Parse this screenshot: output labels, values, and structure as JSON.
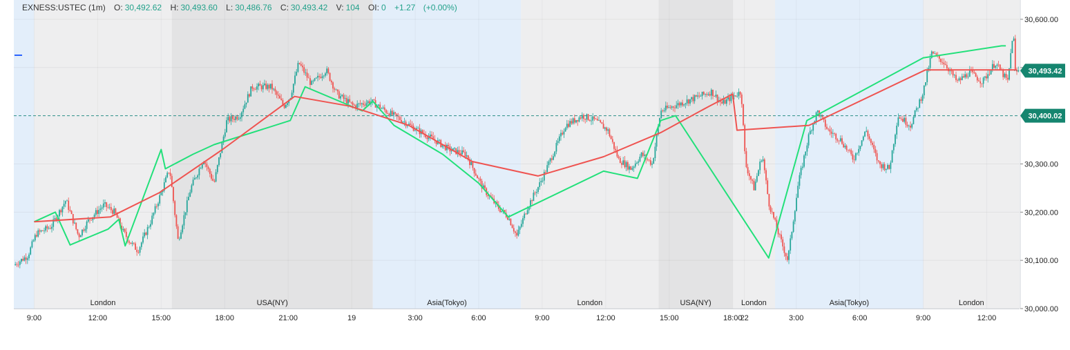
{
  "header": {
    "symbol": "EXNESS:USTEC (1m)",
    "o_label": "O:",
    "o_value": "30,492.62",
    "h_label": "H:",
    "h_value": "30,493.60",
    "l_label": "L:",
    "l_value": "30,486.76",
    "c_label": "C:",
    "c_value": "30,493.42",
    "v_label": "V:",
    "v_value": "104",
    "oi_label": "OI:",
    "oi_value": "0",
    "change": "+1.27",
    "change_pct": "(+0.00%)"
  },
  "colors": {
    "up": "#26a69a",
    "down": "#ef5350",
    "zigzag": "#22e07a",
    "trend": "#ef5350",
    "level": "#2a8f86",
    "price_tag": "#15856f",
    "asia_bg": "#e3eefa",
    "london_bg": "#eeeeef",
    "ny_bg": "#e3e3e4"
  },
  "chart_data": {
    "type": "line",
    "y_axis": {
      "min": 30000,
      "max": 30640,
      "ticks": [
        {
          "value": 30600,
          "label": "30,600.00"
        },
        {
          "value": 30500,
          "label": "30,500.00"
        },
        {
          "value": 30300,
          "label": "30,300.00"
        },
        {
          "value": 30200,
          "label": "30,200.00"
        },
        {
          "value": 30100,
          "label": "30,100.00"
        },
        {
          "value": 30000,
          "label": "30,000.00"
        }
      ]
    },
    "x_axis": {
      "unit": "hours from 18 day 00:00",
      "min": 8.04,
      "max": 55.55,
      "ticks": [
        {
          "x": 9,
          "label": "9:00"
        },
        {
          "x": 12,
          "label": "12:00"
        },
        {
          "x": 15,
          "label": "15:00"
        },
        {
          "x": 18,
          "label": "18:00"
        },
        {
          "x": 21,
          "label": "21:00"
        },
        {
          "x": 24,
          "label": "19"
        },
        {
          "x": 27,
          "label": "3:00"
        },
        {
          "x": 30,
          "label": "6:00"
        },
        {
          "x": 33,
          "label": "9:00"
        },
        {
          "x": 36,
          "label": "12:00"
        },
        {
          "x": 39,
          "label": "15:00"
        },
        {
          "x": 42,
          "label": "18:00"
        },
        {
          "x": 42.55,
          "label": "22"
        },
        {
          "x": 45,
          "label": "3:00"
        },
        {
          "x": 48,
          "label": "6:00"
        },
        {
          "x": 51,
          "label": "9:00"
        },
        {
          "x": 54,
          "label": "12:00"
        }
      ]
    },
    "sessions": [
      {
        "name": "",
        "kind": "asia",
        "start": 8.04,
        "end": 9.0
      },
      {
        "name": "London",
        "kind": "london",
        "start": 9.0,
        "end": 15.5
      },
      {
        "name": "USA(NY)",
        "kind": "ny",
        "start": 15.5,
        "end": 25.0
      },
      {
        "name": "Asia(Tokyo)",
        "kind": "asia",
        "start": 25.0,
        "end": 32.0
      },
      {
        "name": "London",
        "kind": "london",
        "start": 32.0,
        "end": 38.5
      },
      {
        "name": "USA(NY)",
        "kind": "ny",
        "start": 38.5,
        "end": 42.0
      },
      {
        "name": "London",
        "kind": "london",
        "start": 42.0,
        "end": 44.0
      },
      {
        "name": "Asia(Tokyo)",
        "kind": "asia",
        "start": 44.0,
        "end": 51.0
      },
      {
        "name": "London",
        "kind": "london",
        "start": 51.0,
        "end": 55.55
      }
    ],
    "price_path": [
      [
        8.04,
        30090
      ],
      [
        8.7,
        30110
      ],
      [
        9.1,
        30155
      ],
      [
        9.8,
        30170
      ],
      [
        10.5,
        30225
      ],
      [
        11.1,
        30150
      ],
      [
        11.6,
        30185
      ],
      [
        12.3,
        30215
      ],
      [
        12.8,
        30200
      ],
      [
        13.2,
        30160
      ],
      [
        13.5,
        30140
      ],
      [
        13.9,
        30120
      ],
      [
        14.5,
        30180
      ],
      [
        15.0,
        30240
      ],
      [
        15.4,
        30290
      ],
      [
        15.8,
        30140
      ],
      [
        16.4,
        30250
      ],
      [
        17.0,
        30310
      ],
      [
        17.5,
        30260
      ],
      [
        18.1,
        30390
      ],
      [
        18.7,
        30400
      ],
      [
        19.3,
        30460
      ],
      [
        20.2,
        30460
      ],
      [
        20.8,
        30420
      ],
      [
        21.1,
        30440
      ],
      [
        21.5,
        30510
      ],
      [
        22.1,
        30465
      ],
      [
        22.8,
        30495
      ],
      [
        23.3,
        30445
      ],
      [
        24.1,
        30420
      ],
      [
        24.9,
        30430
      ],
      [
        25.6,
        30410
      ],
      [
        26.4,
        30390
      ],
      [
        27.1,
        30370
      ],
      [
        27.9,
        30350
      ],
      [
        28.6,
        30330
      ],
      [
        29.4,
        30320
      ],
      [
        30.2,
        30250
      ],
      [
        30.9,
        30210
      ],
      [
        31.4,
        30190
      ],
      [
        31.8,
        30150
      ],
      [
        32.3,
        30210
      ],
      [
        32.9,
        30260
      ],
      [
        33.6,
        30330
      ],
      [
        34.1,
        30380
      ],
      [
        34.9,
        30400
      ],
      [
        35.5,
        30390
      ],
      [
        36.1,
        30370
      ],
      [
        36.6,
        30310
      ],
      [
        37.2,
        30290
      ],
      [
        37.7,
        30320
      ],
      [
        38.2,
        30300
      ],
      [
        38.6,
        30410
      ],
      [
        39.2,
        30420
      ],
      [
        39.8,
        30430
      ],
      [
        40.4,
        30440
      ],
      [
        41.0,
        30450
      ],
      [
        41.5,
        30425
      ],
      [
        42.0,
        30440
      ],
      [
        42.4,
        30450
      ],
      [
        42.6,
        30300
      ],
      [
        43.0,
        30250
      ],
      [
        43.4,
        30320
      ],
      [
        43.7,
        30220
      ],
      [
        44.2,
        30150
      ],
      [
        44.6,
        30100
      ],
      [
        45.1,
        30260
      ],
      [
        45.6,
        30360
      ],
      [
        46.0,
        30410
      ],
      [
        46.5,
        30370
      ],
      [
        47.1,
        30350
      ],
      [
        47.7,
        30310
      ],
      [
        48.3,
        30370
      ],
      [
        48.9,
        30300
      ],
      [
        49.4,
        30290
      ],
      [
        49.8,
        30400
      ],
      [
        50.4,
        30380
      ],
      [
        51.0,
        30450
      ],
      [
        51.4,
        30530
      ],
      [
        52.0,
        30510
      ],
      [
        52.6,
        30470
      ],
      [
        53.2,
        30490
      ],
      [
        53.8,
        30470
      ],
      [
        54.4,
        30510
      ],
      [
        55.0,
        30470
      ],
      [
        55.25,
        30580
      ],
      [
        55.35,
        30490
      ],
      [
        55.55,
        30493.42
      ]
    ],
    "zigzag": [
      [
        9.0,
        30180
      ],
      [
        10.0,
        30200
      ],
      [
        10.7,
        30132
      ],
      [
        12.5,
        30165
      ],
      [
        13.0,
        30185
      ],
      [
        13.3,
        30130
      ],
      [
        15.0,
        30330
      ],
      [
        15.2,
        30290
      ],
      [
        16.5,
        30320
      ],
      [
        17.5,
        30340
      ],
      [
        21.1,
        30390
      ],
      [
        21.8,
        30460
      ],
      [
        24.5,
        30410
      ],
      [
        25.0,
        30430
      ],
      [
        26.0,
        30380
      ],
      [
        28.3,
        30320
      ],
      [
        30.0,
        30260
      ],
      [
        31.4,
        30190
      ],
      [
        35.9,
        30285
      ],
      [
        37.5,
        30270
      ],
      [
        38.6,
        30390
      ],
      [
        39.3,
        30400
      ],
      [
        43.7,
        30105
      ],
      [
        45.5,
        30390
      ],
      [
        51.0,
        30520
      ],
      [
        54.7,
        30545
      ],
      [
        54.9,
        30545
      ]
    ],
    "trend": [
      [
        9.0,
        30180
      ],
      [
        12.6,
        30190
      ],
      [
        14.9,
        30240
      ],
      [
        17.9,
        30330
      ],
      [
        21.3,
        30440
      ],
      [
        23.9,
        30420
      ],
      [
        26.7,
        30380
      ],
      [
        29.7,
        30305
      ],
      [
        32.8,
        30275
      ],
      [
        35.9,
        30315
      ],
      [
        38.6,
        30365
      ],
      [
        40.9,
        30420
      ],
      [
        42.0,
        30445
      ],
      [
        42.2,
        30370
      ],
      [
        45.6,
        30380
      ],
      [
        51.1,
        30495
      ],
      [
        53.6,
        30495
      ],
      [
        55.4,
        30495
      ]
    ],
    "current_price": {
      "value": 30493.42,
      "label": "30,493.42"
    },
    "level_line": {
      "value": 30400.02,
      "label": "30,400.02"
    }
  }
}
